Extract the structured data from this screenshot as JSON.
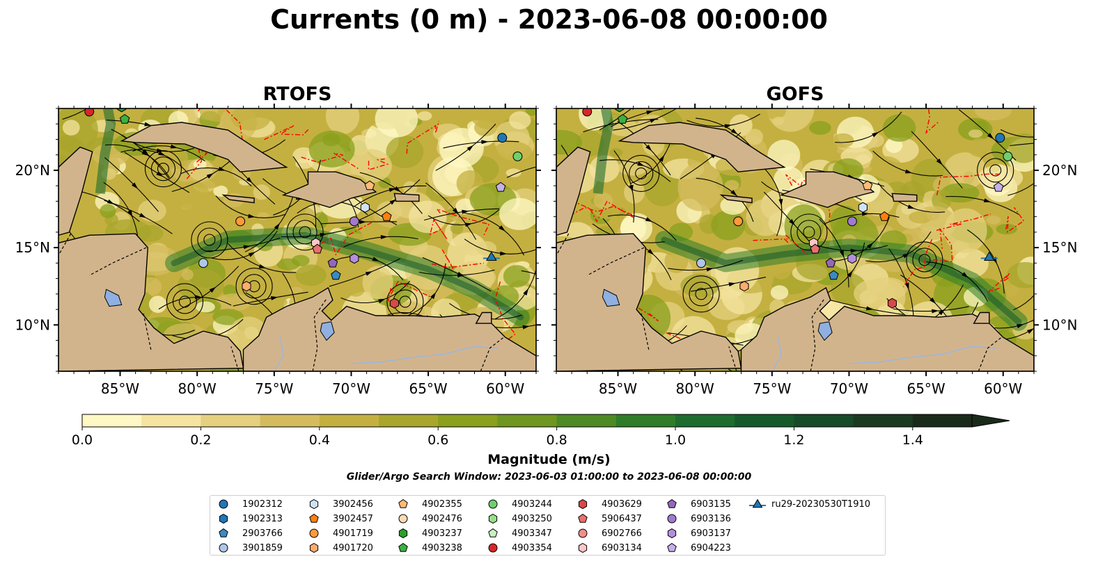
{
  "title": "Currents (0 m) - 2023-06-08 00:00:00",
  "panels": [
    {
      "title": "RTOFS"
    },
    {
      "title": "GOFS"
    }
  ],
  "map": {
    "lon_range": [
      -89,
      -58
    ],
    "lat_range": [
      7,
      24
    ],
    "lon_ticks": [
      "85°W",
      "80°W",
      "75°W",
      "70°W",
      "65°W",
      "60°W"
    ],
    "lat_ticks": [
      "20°N",
      "15°N",
      "10°N"
    ],
    "land_color": "#d2b48c",
    "lake_color": "#8fb0e0"
  },
  "colorbar": {
    "label": "Magnitude (m/s)",
    "ticks": [
      "0.0",
      "0.2",
      "0.4",
      "0.6",
      "0.8",
      "1.0",
      "1.2",
      "1.4"
    ],
    "range": [
      0,
      1.5
    ],
    "extend": "max",
    "colors": [
      "#fff8c4",
      "#f4e4a0",
      "#e4d07e",
      "#d4bc5e",
      "#c4b040",
      "#a8a62c",
      "#8aa01e",
      "#6e9620",
      "#4e8a24",
      "#2f7d28",
      "#1e6c2e",
      "#165a2c",
      "#174a28",
      "#1b3a22",
      "#1a2a1a"
    ]
  },
  "search_window": "Glider/Argo Search Window: 2023-06-03 01:00:00 to 2023-06-08 00:00:00",
  "legend": [
    {
      "label": "1902312",
      "marker": "circle",
      "color": "#1f77b4"
    },
    {
      "label": "1902313",
      "marker": "hexagon",
      "color": "#1f77b4"
    },
    {
      "label": "2903766",
      "marker": "pentagon",
      "color": "#3a8ac0"
    },
    {
      "label": "3901859",
      "marker": "circle",
      "color": "#aec7e8"
    },
    {
      "label": "3902456",
      "marker": "hexagon",
      "color": "#cfe3f5"
    },
    {
      "label": "3902457",
      "marker": "pentagon",
      "color": "#ff7f0e"
    },
    {
      "label": "4901719",
      "marker": "circle",
      "color": "#ff9a3c"
    },
    {
      "label": "4901720",
      "marker": "hexagon",
      "color": "#ffac6e"
    },
    {
      "label": "4902355",
      "marker": "pentagon",
      "color": "#ffbb78"
    },
    {
      "label": "4902476",
      "marker": "circle",
      "color": "#ffd9b4"
    },
    {
      "label": "4903237",
      "marker": "hexagon",
      "color": "#2ca02c"
    },
    {
      "label": "4903238",
      "marker": "pentagon",
      "color": "#3cb043"
    },
    {
      "label": "4903244",
      "marker": "circle",
      "color": "#6fcf6f"
    },
    {
      "label": "4903250",
      "marker": "hexagon",
      "color": "#98df8a"
    },
    {
      "label": "4903347",
      "marker": "pentagon",
      "color": "#c8f0c0"
    },
    {
      "label": "4903354",
      "marker": "circle",
      "color": "#d62728"
    },
    {
      "label": "4903629",
      "marker": "hexagon",
      "color": "#d84848"
    },
    {
      "label": "5906437",
      "marker": "pentagon",
      "color": "#e87070"
    },
    {
      "label": "6902766",
      "marker": "circle",
      "color": "#f08f8a"
    },
    {
      "label": "6903134",
      "marker": "hexagon",
      "color": "#ffc6c6"
    },
    {
      "label": "6903135",
      "marker": "pentagon",
      "color": "#9467bd"
    },
    {
      "label": "6903136",
      "marker": "circle",
      "color": "#a07ad0"
    },
    {
      "label": "6903137",
      "marker": "hexagon",
      "color": "#b58ee0"
    },
    {
      "label": "6904223",
      "marker": "pentagon",
      "color": "#c5b0ea"
    },
    {
      "label": "ru29-20230530T1910",
      "marker": "triangle-line",
      "color": "#1f77b4"
    }
  ],
  "floats": [
    {
      "id": "1902312",
      "lon": -60.2,
      "lat": 22.1
    },
    {
      "id": "4903244",
      "lon": -59.2,
      "lat": 20.9
    },
    {
      "id": "6904223",
      "lon": -60.3,
      "lat": 18.9
    },
    {
      "id": "4902355",
      "lon": -68.8,
      "lat": 19.0
    },
    {
      "id": "3902456",
      "lon": -69.1,
      "lat": 17.6
    },
    {
      "id": "3902457",
      "lon": -67.7,
      "lat": 17.0
    },
    {
      "id": "6903136",
      "lon": -69.8,
      "lat": 16.7
    },
    {
      "id": "4901719",
      "lon": -77.2,
      "lat": 16.7
    },
    {
      "id": "6903134",
      "lon": -72.3,
      "lat": 15.3
    },
    {
      "id": "5906437",
      "lon": -72.2,
      "lat": 14.9
    },
    {
      "id": "6903135",
      "lon": -71.2,
      "lat": 14.0
    },
    {
      "id": "6903137",
      "lon": -69.8,
      "lat": 14.3
    },
    {
      "id": "2903766",
      "lon": -71.0,
      "lat": 13.2
    },
    {
      "id": "3901859",
      "lon": -79.6,
      "lat": 14.0
    },
    {
      "id": "4901720",
      "lon": -76.8,
      "lat": 12.5
    },
    {
      "id": "4903629",
      "lon": -67.2,
      "lat": 11.4
    },
    {
      "id": "ru29-20230530T1910",
      "lon": -60.9,
      "lat": 14.4
    },
    {
      "id": "4903354",
      "lon": -87.0,
      "lat": 23.8
    },
    {
      "id": "4903238",
      "lon": -84.7,
      "lat": 23.3
    },
    {
      "id": "4903237",
      "lon": -84.9,
      "lat": 24.1
    }
  ]
}
